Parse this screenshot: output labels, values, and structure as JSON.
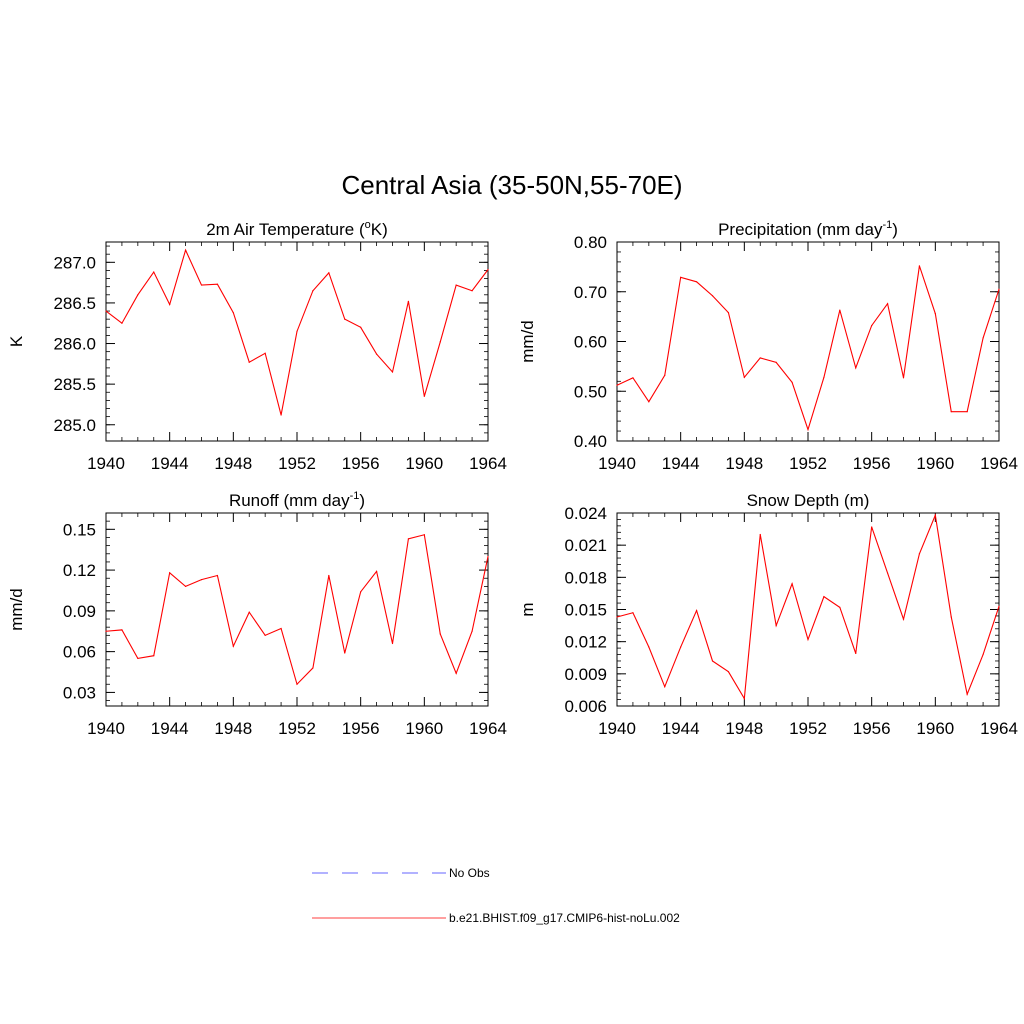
{
  "title": "Central Asia (35-50N,55-70E)",
  "colors": {
    "model": "#ff0000",
    "obs": "#9999ff",
    "axis": "#000000"
  },
  "legend": {
    "obs_label": "No Obs",
    "model_label": "b.e21.BHIST.f09_g17.CMIP6-hist-noLu.002"
  },
  "chart_data": [
    {
      "type": "line",
      "title": "2m Air Temperature (",
      "title_sup": "o",
      "title_tail": "K)",
      "ylabel": "K",
      "xlim": [
        1940,
        1964
      ],
      "ylim": [
        284.8,
        287.25
      ],
      "yticks": [
        "285.0",
        "285.5",
        "286.0",
        "286.5",
        "287.0"
      ],
      "xticks": [
        "1940",
        "1944",
        "1948",
        "1952",
        "1956",
        "1960",
        "1964"
      ],
      "series": [
        {
          "x": [
            1940,
            1941,
            1942,
            1943,
            1944,
            1945,
            1946,
            1947,
            1948,
            1949,
            1950,
            1951,
            1952,
            1953,
            1954,
            1955,
            1956,
            1957,
            1958,
            1959,
            1960,
            1961,
            1962,
            1963,
            1964
          ],
          "values": [
            286.4,
            286.25,
            286.6,
            286.88,
            286.48,
            287.15,
            286.72,
            286.73,
            286.38,
            285.77,
            285.88,
            285.12,
            286.15,
            286.65,
            286.87,
            286.3,
            286.2,
            285.87,
            285.65,
            286.52,
            285.35,
            286.02,
            286.72,
            286.65,
            286.91
          ]
        }
      ]
    },
    {
      "type": "line",
      "title": "Precipitation (mm day",
      "title_sup": "-1",
      "title_tail": ")",
      "ylabel": "mm/d",
      "xlim": [
        1940,
        1964
      ],
      "ylim": [
        0.4,
        0.8
      ],
      "yticks": [
        "0.40",
        "0.50",
        "0.60",
        "0.70",
        "0.80"
      ],
      "xticks": [
        "1940",
        "1944",
        "1948",
        "1952",
        "1956",
        "1960",
        "1964"
      ],
      "series": [
        {
          "x": [
            1940,
            1941,
            1942,
            1943,
            1944,
            1945,
            1946,
            1947,
            1948,
            1949,
            1950,
            1951,
            1952,
            1953,
            1954,
            1955,
            1956,
            1957,
            1958,
            1959,
            1960,
            1961,
            1962,
            1963,
            1964
          ],
          "values": [
            0.512,
            0.527,
            0.479,
            0.532,
            0.729,
            0.72,
            0.692,
            0.658,
            0.528,
            0.567,
            0.558,
            0.518,
            0.423,
            0.528,
            0.663,
            0.547,
            0.632,
            0.676,
            0.527,
            0.752,
            0.656,
            0.459,
            0.459,
            0.607,
            0.705
          ]
        }
      ]
    },
    {
      "type": "line",
      "title": "Runoff (mm day",
      "title_sup": "-1",
      "title_tail": ")",
      "ylabel": "mm/d",
      "xlim": [
        1940,
        1964
      ],
      "ylim": [
        0.02,
        0.162
      ],
      "yticks": [
        "0.03",
        "0.06",
        "0.09",
        "0.12",
        "0.15"
      ],
      "xticks": [
        "1940",
        "1944",
        "1948",
        "1952",
        "1956",
        "1960",
        "1964"
      ],
      "series": [
        {
          "x": [
            1940,
            1941,
            1942,
            1943,
            1944,
            1945,
            1946,
            1947,
            1948,
            1949,
            1950,
            1951,
            1952,
            1953,
            1954,
            1955,
            1956,
            1957,
            1958,
            1959,
            1960,
            1961,
            1962,
            1963,
            1964
          ],
          "values": [
            0.075,
            0.076,
            0.055,
            0.057,
            0.118,
            0.108,
            0.113,
            0.116,
            0.064,
            0.089,
            0.072,
            0.077,
            0.036,
            0.048,
            0.116,
            0.059,
            0.104,
            0.119,
            0.066,
            0.143,
            0.146,
            0.073,
            0.044,
            0.075,
            0.13
          ]
        }
      ]
    },
    {
      "type": "line",
      "title": "Snow Depth (m)",
      "title_sup": "",
      "title_tail": "",
      "ylabel": "m",
      "xlim": [
        1940,
        1964
      ],
      "ylim": [
        0.006,
        0.024
      ],
      "yticks": [
        "0.006",
        "0.009",
        "0.012",
        "0.015",
        "0.018",
        "0.021",
        "0.024"
      ],
      "xticks": [
        "1940",
        "1944",
        "1948",
        "1952",
        "1956",
        "1960",
        "1964"
      ],
      "series": [
        {
          "x": [
            1940,
            1941,
            1942,
            1943,
            1944,
            1945,
            1946,
            1947,
            1948,
            1949,
            1950,
            1951,
            1952,
            1953,
            1954,
            1955,
            1956,
            1957,
            1958,
            1959,
            1960,
            1961,
            1962,
            1963,
            1964
          ],
          "values": [
            0.0143,
            0.0147,
            0.0115,
            0.0078,
            0.0115,
            0.0149,
            0.0102,
            0.0092,
            0.0067,
            0.022,
            0.0135,
            0.0174,
            0.0122,
            0.0162,
            0.0152,
            0.0109,
            0.0227,
            0.0184,
            0.0141,
            0.0202,
            0.0238,
            0.0143,
            0.0071,
            0.0108,
            0.0153
          ]
        }
      ]
    }
  ]
}
